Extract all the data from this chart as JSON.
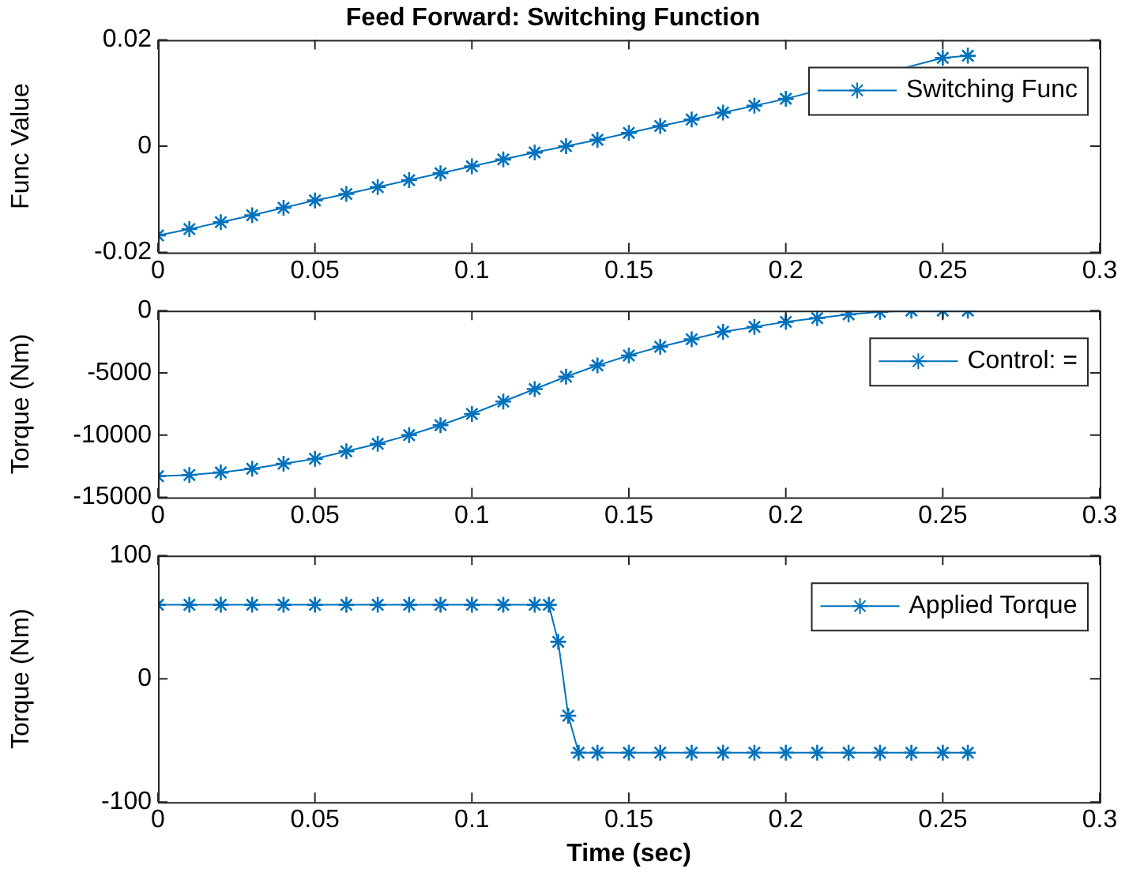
{
  "chart_data": [
    {
      "type": "line",
      "title": "Feed Forward: Switching Function",
      "ylabel": "Func Value",
      "xlim": [
        0,
        0.3
      ],
      "xticks": [
        0,
        0.05,
        0.1,
        0.15,
        0.2,
        0.25,
        0.3
      ],
      "ylim": [
        -0.02,
        0.02
      ],
      "yticks": [
        -0.02,
        0,
        0.02
      ],
      "grid": false,
      "legend": "top right",
      "marker": "cross",
      "line_style": "solid",
      "x": [
        0,
        0.01,
        0.02,
        0.03,
        0.04,
        0.05,
        0.06,
        0.07,
        0.08,
        0.09,
        0.1,
        0.11,
        0.12,
        0.13,
        0.14,
        0.15,
        0.16,
        0.17,
        0.18,
        0.19,
        0.2,
        0.21,
        0.22,
        0.23,
        0.24,
        0.25,
        0.258
      ],
      "series": [
        {
          "name": "Switching Func",
          "color": "#0072bd",
          "values": [
            -0.0168,
            -0.0156,
            -0.0143,
            -0.013,
            -0.0116,
            -0.0102,
            -0.009,
            -0.0077,
            -0.0064,
            -0.0051,
            -0.0038,
            -0.0025,
            -0.0012,
            0,
            0.0012,
            0.0025,
            0.0038,
            0.005,
            0.0063,
            0.0076,
            0.0089,
            null,
            null,
            null,
            null,
            0.0166,
            0.017
          ]
        }
      ]
    },
    {
      "type": "line",
      "ylabel": "Torque (Nm)",
      "xlim": [
        0,
        0.3
      ],
      "xticks": [
        0,
        0.05,
        0.1,
        0.15,
        0.2,
        0.25,
        0.3
      ],
      "ylim": [
        -15000,
        0
      ],
      "yticks": [
        -15000,
        -10000,
        -5000,
        0
      ],
      "grid": false,
      "legend": "top right",
      "marker": "cross",
      "line_style": "solid",
      "x": [
        0,
        0.01,
        0.02,
        0.03,
        0.04,
        0.05,
        0.06,
        0.07,
        0.08,
        0.09,
        0.1,
        0.11,
        0.12,
        0.13,
        0.14,
        0.15,
        0.16,
        0.17,
        0.18,
        0.19,
        0.2,
        0.21,
        0.22,
        0.23,
        0.24,
        0.25,
        0.258
      ],
      "series": [
        {
          "name": "Control: =",
          "color": "#0072bd",
          "values": [
            -13300,
            -13200,
            -13000,
            -12700,
            -12300,
            -11900,
            -11300,
            -10700,
            -10000,
            -9200,
            -8300,
            -7300,
            -6300,
            -5300,
            -4400,
            -3600,
            -2900,
            -2300,
            -1700,
            -1300,
            -900,
            -600,
            -300,
            -100,
            0,
            0,
            0
          ]
        }
      ]
    },
    {
      "type": "line",
      "xlabel": "Time (sec)",
      "ylabel": "Torque (Nm)",
      "xlim": [
        0,
        0.3
      ],
      "xticks": [
        0,
        0.05,
        0.1,
        0.15,
        0.2,
        0.25,
        0.3
      ],
      "ylim": [
        -100,
        100
      ],
      "yticks": [
        -100,
        0,
        100
      ],
      "grid": false,
      "legend": "top right",
      "marker": "cross",
      "line_style": "solid",
      "x": [
        0,
        0.01,
        0.02,
        0.03,
        0.04,
        0.05,
        0.06,
        0.07,
        0.08,
        0.09,
        0.1,
        0.11,
        0.12,
        0.1245,
        0.1275,
        0.1307,
        0.134,
        0.14,
        0.15,
        0.16,
        0.17,
        0.18,
        0.19,
        0.2,
        0.21,
        0.22,
        0.23,
        0.24,
        0.25,
        0.258
      ],
      "series": [
        {
          "name": "Applied Torque",
          "color": "#0072bd",
          "values": [
            60,
            60,
            60,
            60,
            60,
            60,
            60,
            60,
            60,
            60,
            60,
            60,
            60,
            60,
            30,
            -30,
            -60,
            -60,
            -60,
            -60,
            -60,
            -60,
            -60,
            -60,
            -60,
            -60,
            -60,
            -60,
            -60,
            -60
          ]
        }
      ]
    }
  ]
}
